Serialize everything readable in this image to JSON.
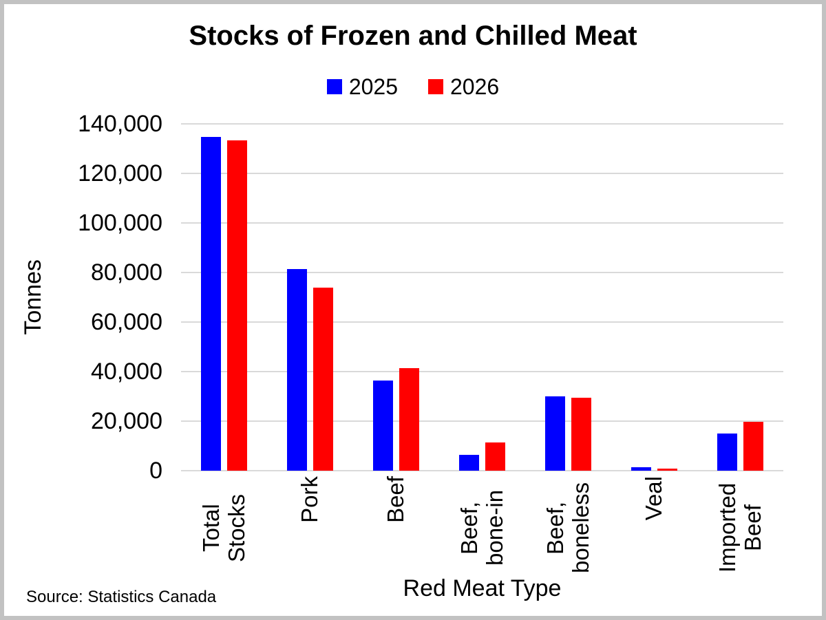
{
  "chart_data": {
    "type": "bar",
    "title": "Stocks of Frozen and Chilled Meat",
    "xlabel": "Red Meat Type",
    "ylabel": "Tonnes",
    "categories": [
      "Total Stocks",
      "Pork",
      "Beef",
      "Beef, bone-in",
      "Beef, boneless",
      "Veal",
      "Imported Beef"
    ],
    "series": [
      {
        "name": "2025",
        "color": "#0000FF",
        "values": [
          134600,
          81400,
          36400,
          6300,
          30100,
          1300,
          15100
        ]
      },
      {
        "name": "2026",
        "color": "#FF0000",
        "values": [
          133400,
          74000,
          41300,
          11500,
          29500,
          800,
          19600
        ]
      }
    ],
    "ylim": [
      0,
      140000
    ],
    "ytick_step": 20000,
    "ytick_labels": [
      "0",
      "20,000",
      "40,000",
      "60,000",
      "80,000",
      "100,000",
      "120,000",
      "140,000"
    ],
    "grid": "horizontal",
    "legend_position": "top-center"
  },
  "source_note": "Source: Statistics Canada",
  "colors": {
    "gridline": "#D9D9D9",
    "frame_border": "#C2C2C2",
    "text": "#000000"
  }
}
